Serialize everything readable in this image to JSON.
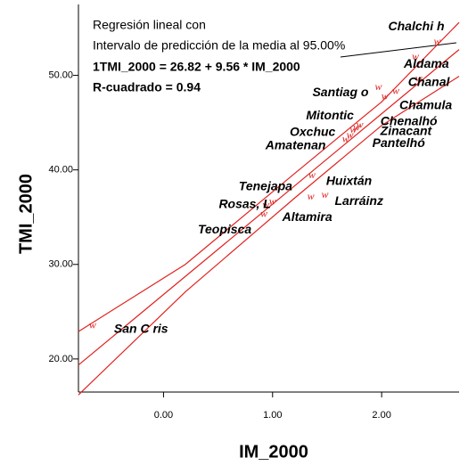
{
  "chart_data": {
    "type": "scatter",
    "x_label": "IM_2000",
    "y_label": "TMI_2000",
    "annotations": [
      "Regresión lineal con",
      "Intervalo de predicción de la media al 95.00%",
      "1TMI_2000 = 26.82 + 9.56 * IM_2000",
      "R-cuadrado = 0.94"
    ],
    "xlim": [
      -0.78,
      2.71
    ],
    "ylim": [
      16.5,
      57.5
    ],
    "xticks": [
      {
        "value": 0,
        "label": "0.00"
      },
      {
        "value": 1,
        "label": "1.00"
      },
      {
        "value": 2,
        "label": "2.00"
      }
    ],
    "yticks": [
      {
        "value": 20,
        "label": "20.00"
      },
      {
        "value": 30,
        "label": "30.00"
      },
      {
        "value": 40,
        "label": "40.00"
      },
      {
        "value": 50,
        "label": "50.00"
      }
    ],
    "marker": "w",
    "color": "#e0221f",
    "points": {
      "labels": [
        "Chalchi h",
        "Aldama",
        "Chanal",
        "Santiag o",
        "Chamula",
        "Mitontic",
        "Chenalhó",
        "Oxchuc",
        "Zinacant",
        "Amatenan",
        "Pantelhó",
        "Huixtán",
        "Tenejapa",
        "Larráinz",
        "Rosas, L",
        "Altamira",
        "Teopisca",
        "San C ris"
      ],
      "x": [
        2.51,
        2.31,
        2.34,
        1.97,
        2.13,
        1.74,
        2.03,
        1.77,
        1.8,
        1.67,
        1.71,
        1.36,
        1.0,
        1.48,
        0.94,
        1.35,
        0.92,
        -0.65
      ],
      "values": [
        53.5,
        51.9,
        49.6,
        48.7,
        48.3,
        44.2,
        47.7,
        44.4,
        44.7,
        43.2,
        43.6,
        39.4,
        36.6,
        37.3,
        36.2,
        37.1,
        35.3,
        23.5
      ]
    },
    "lines": {
      "x": [
        -0.78,
        0.2,
        1.2,
        2.0,
        2.71
      ],
      "series": [
        {
          "values": [
            22.9,
            30.0,
            39.6,
            47.2,
            55.6
          ]
        },
        {
          "values": [
            19.36,
            28.73,
            38.29,
            45.94,
            52.73
          ]
        },
        {
          "values": [
            16.2,
            27.1,
            37.0,
            44.7,
            49.9
          ]
        }
      ]
    }
  }
}
